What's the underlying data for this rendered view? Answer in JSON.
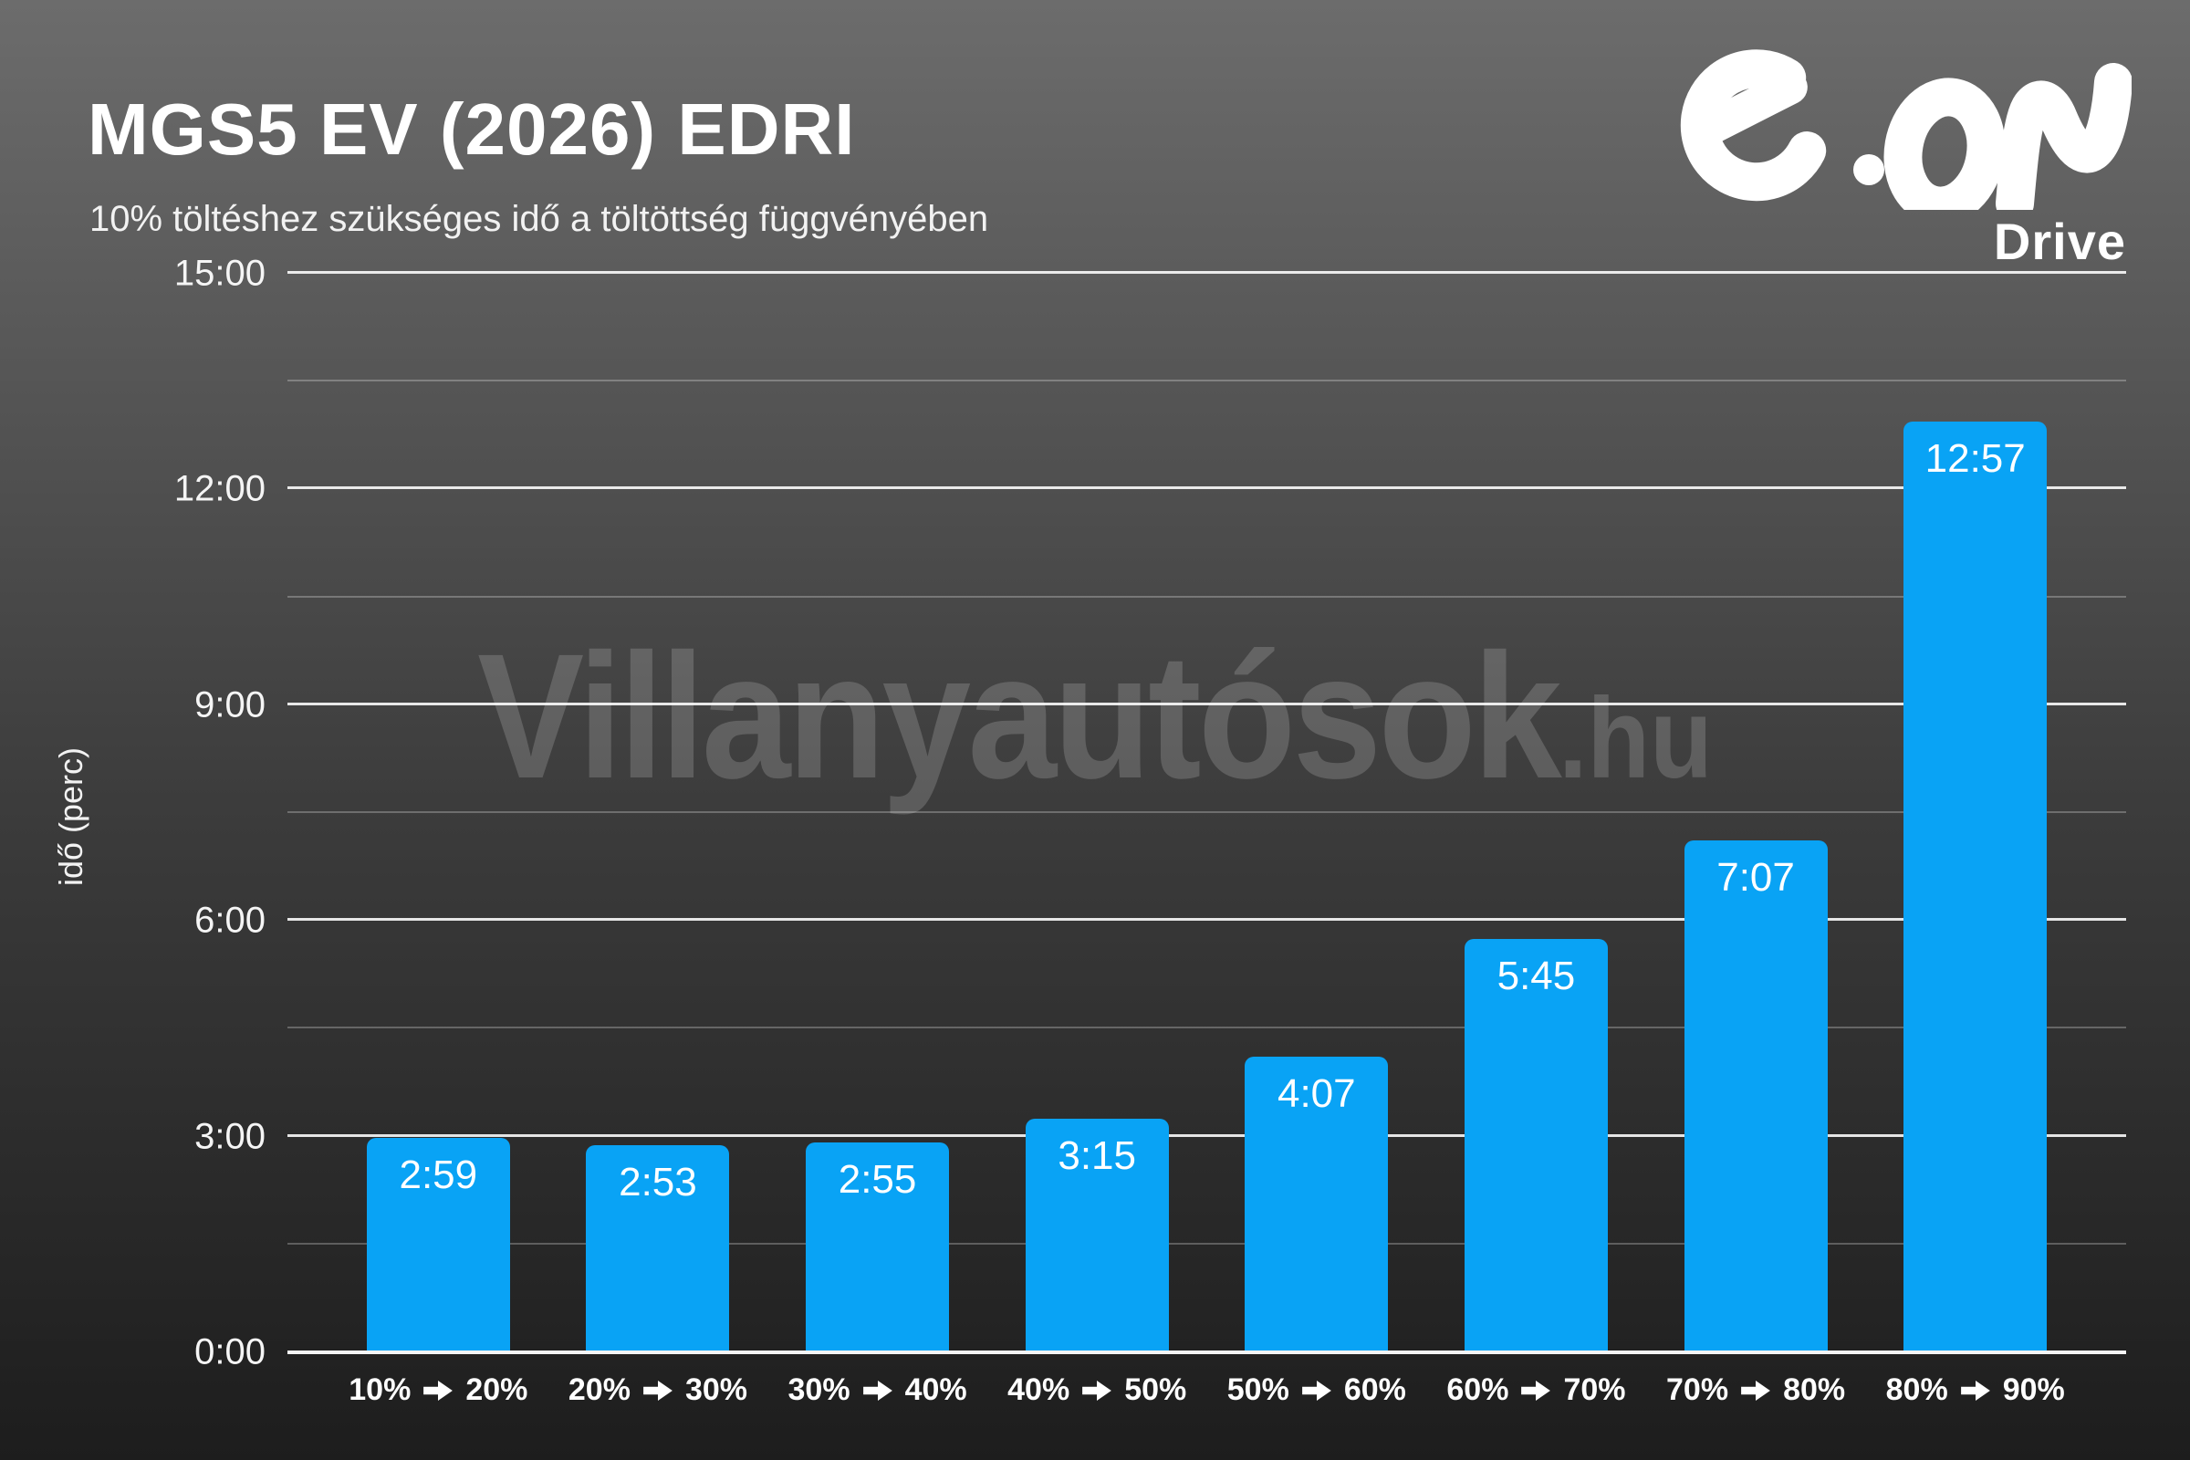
{
  "header": {
    "title": "MGS5 EV (2026) EDRI",
    "subtitle": "10% töltéshez szükséges idő a töltöttség függvényében"
  },
  "logo": {
    "brand": "e·on",
    "sub": "Drive"
  },
  "watermark": {
    "main": "Villanyautósok",
    "suffix": ".hu"
  },
  "chart_data": {
    "type": "bar",
    "title": "MGS5 EV (2026) EDRI",
    "subtitle": "10% töltéshez szükséges idő a töltöttség függvényében",
    "categories": [
      "10% ➡ 20%",
      "20% ➡ 30%",
      "30% ➡ 40%",
      "40% ➡ 50%",
      "50% ➡ 60%",
      "60% ➡ 70%",
      "70% ➡ 80%",
      "80% ➡ 90%"
    ],
    "values_mmss": [
      "2:59",
      "2:53",
      "2:55",
      "3:15",
      "4:07",
      "5:45",
      "7:07",
      "12:57"
    ],
    "values_minutes": [
      2.983,
      2.883,
      2.917,
      3.25,
      4.117,
      5.75,
      7.117,
      12.95
    ],
    "xlabel": "",
    "ylabel": "idő (perc)",
    "ylim": [
      0,
      15
    ],
    "yticks_major": [
      "0:00",
      "3:00",
      "6:00",
      "9:00",
      "12:00",
      "15:00"
    ],
    "gridlines_minor": [
      1.5,
      4.5,
      7.5,
      10.5,
      13.5
    ],
    "grid": true,
    "legend": "none",
    "bar_color": "#09a3f5",
    "text_color": "#ffffff",
    "background_top": "#6c6c6c",
    "background_bottom": "#1d1d1d"
  }
}
